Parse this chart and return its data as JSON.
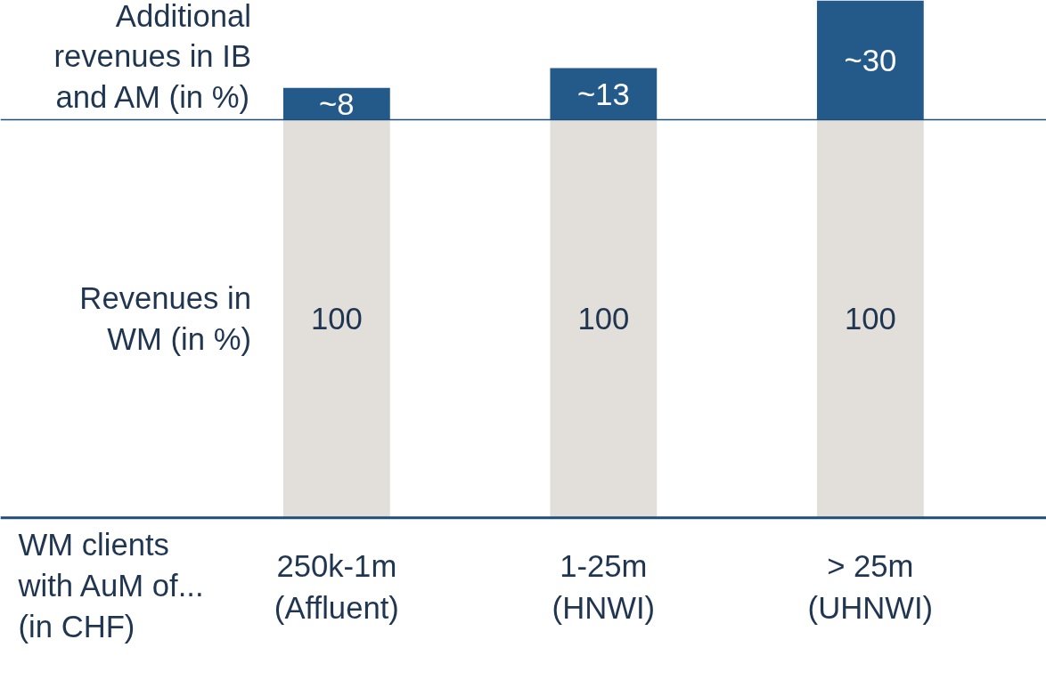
{
  "chart_data": {
    "type": "bar",
    "stacked": true,
    "xlabel": "WM clients\nwith AuM of...\n(in CHF)",
    "categories": [
      "250k-1m\n(Affluent)",
      "1-25m\n(HNWI)",
      "> 25m\n(UHNWI)"
    ],
    "series": [
      {
        "name": "Revenues in\nWM (in %)",
        "color": "#e2dfdb",
        "values": [
          100,
          100,
          100
        ],
        "value_labels": [
          "100",
          "100",
          "100"
        ]
      },
      {
        "name": "Additional\nrevenues in IB\nand AM (in %)",
        "color": "#245a89",
        "values": [
          8,
          13,
          30
        ],
        "value_labels": [
          "~8",
          "~13",
          "~30"
        ]
      }
    ],
    "tick_labels": "x",
    "grid": false,
    "ref_lines": [
      {
        "axis": "y",
        "value": 100,
        "color": "#1f4e79"
      }
    ]
  }
}
